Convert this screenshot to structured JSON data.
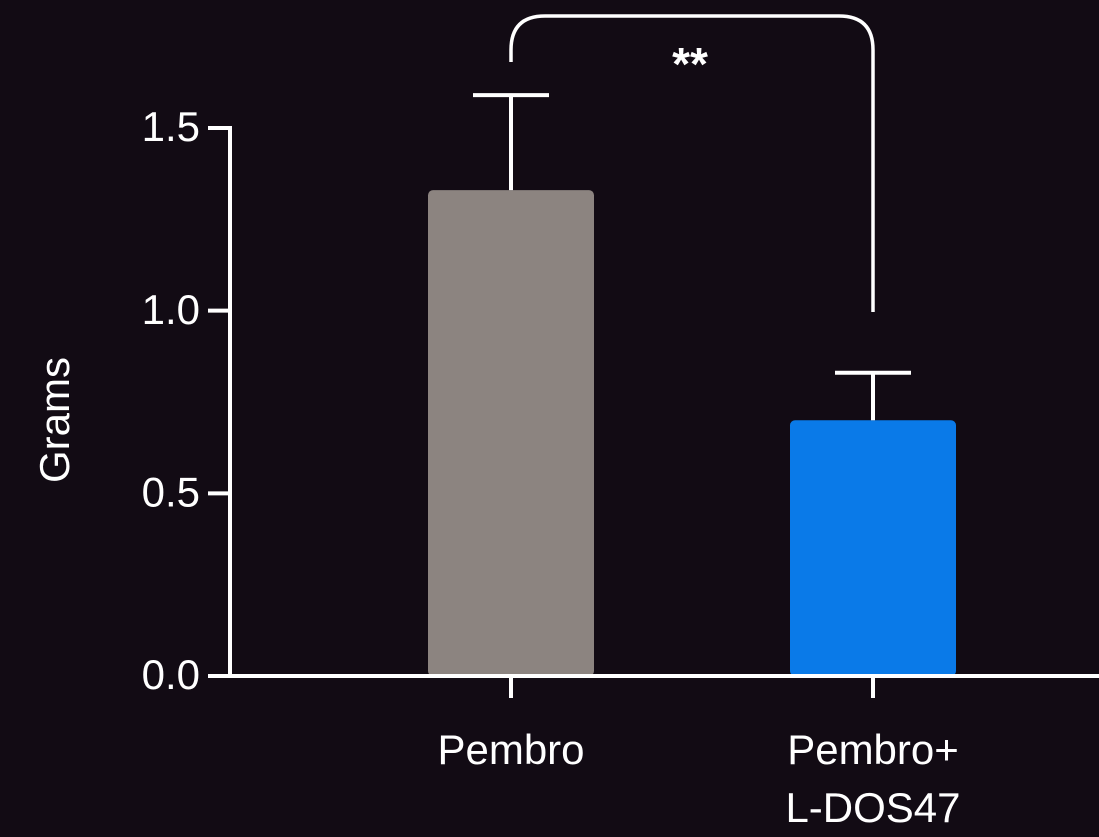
{
  "chart_data": {
    "type": "bar",
    "ylabel": "Grams",
    "ylim": [
      0,
      1.5
    ],
    "yticks": [
      "0.0",
      "0.5",
      "1.0",
      "1.5"
    ],
    "categories": [
      {
        "lines": [
          "Pembro"
        ]
      },
      {
        "lines": [
          "Pembro+",
          "L-DOS47"
        ]
      }
    ],
    "values": [
      1.33,
      0.7
    ],
    "error_upper": [
      1.59,
      0.83
    ],
    "bar_colors": [
      "#8c8480",
      "#0a7ae8"
    ],
    "significance": {
      "label": "**",
      "between": [
        0,
        1
      ]
    }
  }
}
